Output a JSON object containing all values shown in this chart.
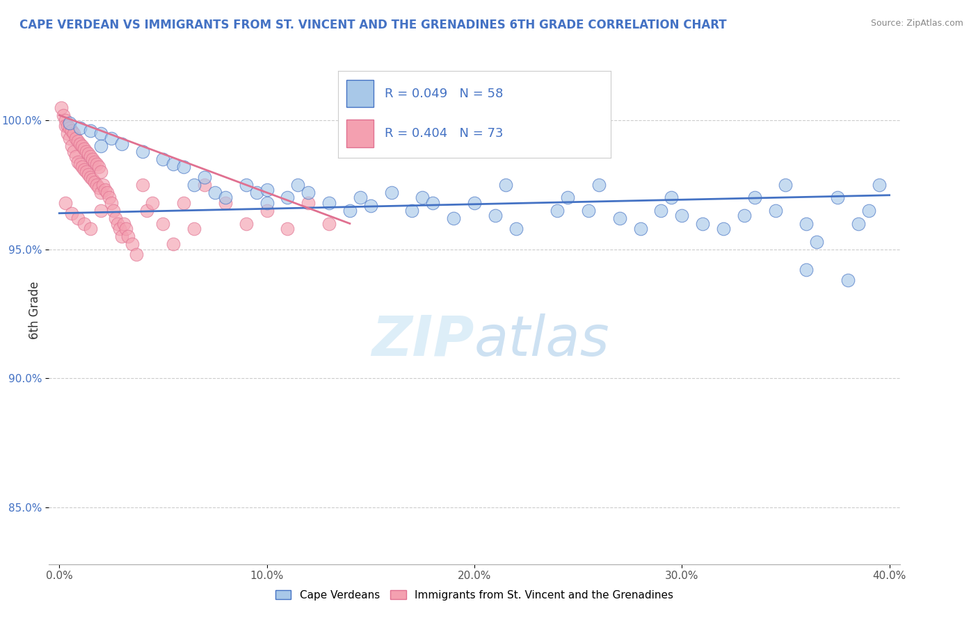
{
  "title": "CAPE VERDEAN VS IMMIGRANTS FROM ST. VINCENT AND THE GRENADINES 6TH GRADE CORRELATION CHART",
  "source": "Source: ZipAtlas.com",
  "ylabel": "6th Grade",
  "xlabel_ticks": [
    "0.0%",
    "10.0%",
    "20.0%",
    "30.0%",
    "40.0%"
  ],
  "xlabel_vals": [
    0.0,
    0.1,
    0.2,
    0.3,
    0.4
  ],
  "ylabel_ticks": [
    "85.0%",
    "90.0%",
    "95.0%",
    "100.0%"
  ],
  "ylabel_vals": [
    0.85,
    0.9,
    0.95,
    1.0
  ],
  "xlim": [
    -0.005,
    0.405
  ],
  "ylim": [
    0.828,
    1.025
  ],
  "legend1_label": "Cape Verdeans",
  "legend2_label": "Immigrants from St. Vincent and the Grenadines",
  "R1": "0.049",
  "N1": "58",
  "R2": "0.404",
  "N2": "73",
  "color_blue": "#A8C8E8",
  "color_pink": "#F4A0B0",
  "color_blue_dark": "#4472C4",
  "color_pink_dark": "#E07090",
  "watermark_zip": "ZIP",
  "watermark_atlas": "atlas",
  "blue_points_x": [
    0.005,
    0.01,
    0.015,
    0.02,
    0.02,
    0.025,
    0.03,
    0.04,
    0.05,
    0.055,
    0.06,
    0.065,
    0.07,
    0.075,
    0.08,
    0.09,
    0.095,
    0.1,
    0.1,
    0.11,
    0.115,
    0.12,
    0.13,
    0.14,
    0.145,
    0.15,
    0.16,
    0.17,
    0.175,
    0.18,
    0.19,
    0.2,
    0.21,
    0.215,
    0.22,
    0.24,
    0.245,
    0.255,
    0.26,
    0.27,
    0.28,
    0.29,
    0.295,
    0.3,
    0.31,
    0.32,
    0.33,
    0.335,
    0.345,
    0.35,
    0.36,
    0.365,
    0.375,
    0.385,
    0.39,
    0.395,
    0.36,
    0.38
  ],
  "blue_points_y": [
    0.999,
    0.997,
    0.996,
    0.995,
    0.99,
    0.993,
    0.991,
    0.988,
    0.985,
    0.983,
    0.982,
    0.975,
    0.978,
    0.972,
    0.97,
    0.975,
    0.972,
    0.968,
    0.973,
    0.97,
    0.975,
    0.972,
    0.968,
    0.965,
    0.97,
    0.967,
    0.972,
    0.965,
    0.97,
    0.968,
    0.962,
    0.968,
    0.963,
    0.975,
    0.958,
    0.965,
    0.97,
    0.965,
    0.975,
    0.962,
    0.958,
    0.965,
    0.97,
    0.963,
    0.96,
    0.958,
    0.963,
    0.97,
    0.965,
    0.975,
    0.96,
    0.953,
    0.97,
    0.96,
    0.965,
    0.975,
    0.942,
    0.938
  ],
  "pink_points_x": [
    0.001,
    0.002,
    0.003,
    0.003,
    0.004,
    0.004,
    0.005,
    0.005,
    0.006,
    0.006,
    0.007,
    0.007,
    0.008,
    0.008,
    0.009,
    0.009,
    0.01,
    0.01,
    0.011,
    0.011,
    0.012,
    0.012,
    0.013,
    0.013,
    0.014,
    0.014,
    0.015,
    0.015,
    0.016,
    0.016,
    0.017,
    0.017,
    0.018,
    0.018,
    0.019,
    0.019,
    0.02,
    0.02,
    0.021,
    0.022,
    0.023,
    0.024,
    0.025,
    0.026,
    0.027,
    0.028,
    0.029,
    0.03,
    0.031,
    0.032,
    0.033,
    0.035,
    0.037,
    0.04,
    0.042,
    0.045,
    0.05,
    0.055,
    0.06,
    0.065,
    0.07,
    0.08,
    0.09,
    0.1,
    0.11,
    0.12,
    0.13,
    0.003,
    0.006,
    0.009,
    0.012,
    0.015,
    0.02
  ],
  "pink_points_y": [
    1.005,
    1.002,
    1.0,
    0.998,
    0.998,
    0.995,
    0.997,
    0.993,
    0.996,
    0.99,
    0.995,
    0.988,
    0.993,
    0.986,
    0.992,
    0.984,
    0.991,
    0.983,
    0.99,
    0.982,
    0.989,
    0.981,
    0.988,
    0.98,
    0.987,
    0.979,
    0.986,
    0.978,
    0.985,
    0.977,
    0.984,
    0.976,
    0.983,
    0.975,
    0.982,
    0.974,
    0.98,
    0.972,
    0.975,
    0.973,
    0.972,
    0.97,
    0.968,
    0.965,
    0.962,
    0.96,
    0.958,
    0.955,
    0.96,
    0.958,
    0.955,
    0.952,
    0.948,
    0.975,
    0.965,
    0.968,
    0.96,
    0.952,
    0.968,
    0.958,
    0.975,
    0.968,
    0.96,
    0.965,
    0.958,
    0.968,
    0.96,
    0.968,
    0.964,
    0.962,
    0.96,
    0.958,
    0.965
  ],
  "blue_line_x": [
    0.0,
    0.4
  ],
  "blue_line_y": [
    0.964,
    0.971
  ],
  "pink_line_x": [
    0.0,
    0.14
  ],
  "pink_line_y": [
    1.002,
    0.96
  ]
}
